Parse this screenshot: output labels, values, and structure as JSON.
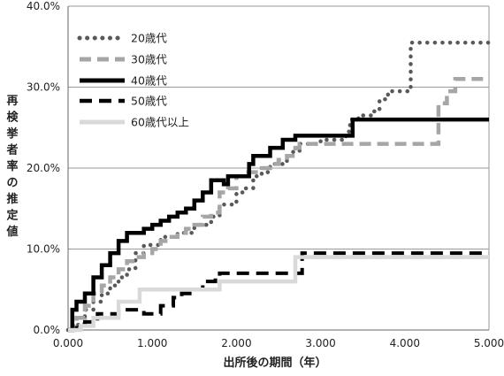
{
  "chart_data": {
    "type": "line",
    "xlabel": "出所後の期間（年）",
    "ylabel": "再検挙者率の推定値",
    "xlim": [
      0,
      5
    ],
    "ylim": [
      0,
      40
    ],
    "x_ticks": [
      "0.000",
      "1.000",
      "2.000",
      "3.000",
      "4.000",
      "5.000"
    ],
    "y_ticks": [
      "0.0%",
      "10.0%",
      "20.0%",
      "30.0%",
      "40.0%"
    ],
    "grid": "horizontal",
    "legend_position": "top-left",
    "series": [
      {
        "name": "20歳代",
        "color": "#595959",
        "dash": "dotted",
        "points": [
          [
            0,
            0
          ],
          [
            0.12,
            0.8
          ],
          [
            0.2,
            2.5
          ],
          [
            0.3,
            3.5
          ],
          [
            0.4,
            4.5
          ],
          [
            0.5,
            5.5
          ],
          [
            0.6,
            6.5
          ],
          [
            0.65,
            6.5
          ],
          [
            0.7,
            7.5
          ],
          [
            0.8,
            9.5
          ],
          [
            0.9,
            10.5
          ],
          [
            1.0,
            10.5
          ],
          [
            1.1,
            11.5
          ],
          [
            1.2,
            11.5
          ],
          [
            1.3,
            12.0
          ],
          [
            1.4,
            12.0
          ],
          [
            1.5,
            13.0
          ],
          [
            1.6,
            13.0
          ],
          [
            1.7,
            14.0
          ],
          [
            1.8,
            15.5
          ],
          [
            1.9,
            15.5
          ],
          [
            2.0,
            17.0
          ],
          [
            2.1,
            17.5
          ],
          [
            2.2,
            19.0
          ],
          [
            2.3,
            19.5
          ],
          [
            2.4,
            20.5
          ],
          [
            2.5,
            20.5
          ],
          [
            2.6,
            21.5
          ],
          [
            2.65,
            22.0
          ],
          [
            2.75,
            23.0
          ],
          [
            2.85,
            23.0
          ],
          [
            3.0,
            23.5
          ],
          [
            3.3,
            24.5
          ],
          [
            3.35,
            26.0
          ],
          [
            3.45,
            26.5
          ],
          [
            3.6,
            27.0
          ],
          [
            3.7,
            28.5
          ],
          [
            3.8,
            29.5
          ],
          [
            4.0,
            29.5
          ],
          [
            4.07,
            35.5
          ],
          [
            5.0,
            35.5
          ]
        ]
      },
      {
        "name": "30歳代",
        "color": "#a6a6a6",
        "dash": "dashed",
        "points": [
          [
            0,
            0
          ],
          [
            0.05,
            0.5
          ],
          [
            0.1,
            1.5
          ],
          [
            0.2,
            3.0
          ],
          [
            0.3,
            4.5
          ],
          [
            0.4,
            5.5
          ],
          [
            0.5,
            6.5
          ],
          [
            0.6,
            7.5
          ],
          [
            0.7,
            8.5
          ],
          [
            0.8,
            9.0
          ],
          [
            0.9,
            9.5
          ],
          [
            1.0,
            10.0
          ],
          [
            1.1,
            11.0
          ],
          [
            1.2,
            11.5
          ],
          [
            1.3,
            12.0
          ],
          [
            1.4,
            12.5
          ],
          [
            1.5,
            13.0
          ],
          [
            1.6,
            14.0
          ],
          [
            1.7,
            14.5
          ],
          [
            1.8,
            17.0
          ],
          [
            1.9,
            17.5
          ],
          [
            2.0,
            19.0
          ],
          [
            2.1,
            19.5
          ],
          [
            2.2,
            19.5
          ],
          [
            2.3,
            20.0
          ],
          [
            2.4,
            20.5
          ],
          [
            2.5,
            21.0
          ],
          [
            2.6,
            21.5
          ],
          [
            2.7,
            22.5
          ],
          [
            2.75,
            23.0
          ],
          [
            4.33,
            23.0
          ],
          [
            4.4,
            28.0
          ],
          [
            4.5,
            29.5
          ],
          [
            4.6,
            31.0
          ],
          [
            5.0,
            31.0
          ]
        ]
      },
      {
        "name": "40歳代",
        "color": "#000000",
        "dash": "solid",
        "points": [
          [
            0,
            0
          ],
          [
            0.05,
            2.5
          ],
          [
            0.1,
            3.5
          ],
          [
            0.2,
            4.5
          ],
          [
            0.3,
            6.5
          ],
          [
            0.4,
            8.0
          ],
          [
            0.5,
            9.5
          ],
          [
            0.6,
            11.0
          ],
          [
            0.7,
            12.0
          ],
          [
            0.8,
            12.0
          ],
          [
            0.9,
            12.5
          ],
          [
            1.0,
            13.0
          ],
          [
            1.1,
            13.5
          ],
          [
            1.2,
            14.0
          ],
          [
            1.3,
            14.5
          ],
          [
            1.4,
            15.0
          ],
          [
            1.5,
            16.0
          ],
          [
            1.6,
            17.0
          ],
          [
            1.7,
            18.5
          ],
          [
            1.8,
            18.5
          ],
          [
            1.85,
            18.0
          ],
          [
            1.9,
            19.0
          ],
          [
            2.0,
            19.0
          ],
          [
            2.1,
            19.0
          ],
          [
            2.15,
            20.5
          ],
          [
            2.2,
            21.5
          ],
          [
            2.3,
            21.5
          ],
          [
            2.4,
            22.5
          ],
          [
            2.5,
            22.5
          ],
          [
            2.55,
            23.5
          ],
          [
            2.7,
            24.0
          ],
          [
            3.3,
            24.0
          ],
          [
            3.38,
            26.0
          ],
          [
            5.0,
            26.0
          ]
        ]
      },
      {
        "name": "50歳代",
        "color": "#000000",
        "dash": "longdash",
        "points": [
          [
            0,
            0
          ],
          [
            0.1,
            0.5
          ],
          [
            0.2,
            1.0
          ],
          [
            0.35,
            2.0
          ],
          [
            0.6,
            2.5
          ],
          [
            0.8,
            2.5
          ],
          [
            0.9,
            2.0
          ],
          [
            1.0,
            2.0
          ],
          [
            1.1,
            3.0
          ],
          [
            1.25,
            4.0
          ],
          [
            1.35,
            4.5
          ],
          [
            1.5,
            5.0
          ],
          [
            1.6,
            6.0
          ],
          [
            1.7,
            6.0
          ],
          [
            1.75,
            6.5
          ],
          [
            1.8,
            7.0
          ],
          [
            2.7,
            7.0
          ],
          [
            2.78,
            9.5
          ],
          [
            5.0,
            9.5
          ]
        ]
      },
      {
        "name": "60歳代以上",
        "color": "#d9d9d9",
        "dash": "solid",
        "points": [
          [
            0,
            0
          ],
          [
            0.15,
            0.5
          ],
          [
            0.3,
            1.5
          ],
          [
            0.5,
            1.5
          ],
          [
            0.6,
            3.5
          ],
          [
            0.7,
            3.5
          ],
          [
            0.85,
            5.0
          ],
          [
            1.7,
            5.0
          ],
          [
            1.8,
            6.0
          ],
          [
            2.65,
            6.0
          ],
          [
            2.7,
            9.0
          ],
          [
            5.0,
            9.0
          ]
        ]
      }
    ]
  }
}
